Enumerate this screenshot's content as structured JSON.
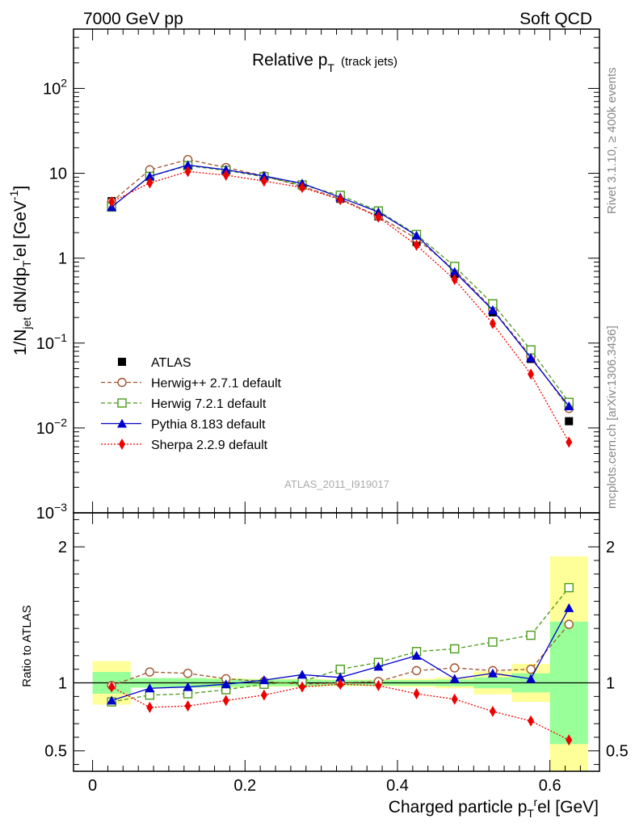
{
  "header": {
    "left": "7000 GeV pp",
    "right": "Soft QCD"
  },
  "side_labels": {
    "rivet": "Rivet 3.1.10, ≥ 400k events",
    "mcplots": "mcplots.cern.ch [arXiv:1306.3436]"
  },
  "chart_data": [
    {
      "type": "line",
      "title": "Relative p",
      "title_sub": "T",
      "title_extra": "(track jets)",
      "analysis_id": "ATLAS_2011_I919017",
      "ylabel": "1/N_jet dN/dp_T^rel [GeV^-1]",
      "yscale": "log",
      "ylim": [
        0.001,
        500
      ],
      "yticks": [
        {
          "base": "10",
          "exp": "2",
          "value": 100
        },
        {
          "base": "10",
          "exp": "",
          "value": 10
        },
        {
          "base": "1",
          "exp": "",
          "value": 1
        },
        {
          "base": "10",
          "exp": "−1",
          "value": 0.1
        },
        {
          "base": "10",
          "exp": "−2",
          "value": 0.01
        },
        {
          "base": "10",
          "exp": "−3",
          "value": 0.001
        }
      ],
      "xlim": [
        -0.025,
        0.665
      ],
      "x": [
        0.025,
        0.075,
        0.125,
        0.175,
        0.225,
        0.275,
        0.325,
        0.375,
        0.425,
        0.475,
        0.525,
        0.575,
        0.625
      ],
      "legend": [
        {
          "name": "ATLAS",
          "color": "#000000",
          "marker": "square-filled",
          "dash": ""
        },
        {
          "name": "Herwig++ 2.7.1 default",
          "color": "#a0522d",
          "marker": "circle-open",
          "dash": "5,3"
        },
        {
          "name": "Herwig 7.2.1 default",
          "color": "#4a9a1a",
          "marker": "square-open",
          "dash": "5,3"
        },
        {
          "name": "Pythia 8.183 default",
          "color": "#0000cc",
          "marker": "triangle-filled",
          "dash": ""
        },
        {
          "name": "Sherpa 2.2.9 default",
          "color": "#ee0000",
          "marker": "diamond-filled",
          "dash": "2,2"
        }
      ],
      "series": [
        {
          "name": "ATLAS",
          "values": [
            4.7,
            10.2,
            13.3,
            11.3,
            9.2,
            7.2,
            5.0,
            3.1,
            1.55,
            0.65,
            0.23,
            0.065,
            0.012
          ]
        },
        {
          "name": "Herwig++ 2.7.1 default",
          "values": [
            4.6,
            11.0,
            14.5,
            11.7,
            9.3,
            7.0,
            5.0,
            3.1,
            1.7,
            0.73,
            0.25,
            0.07,
            0.017
          ]
        },
        {
          "name": "Herwig 7.2.1 default",
          "values": [
            4.0,
            9.2,
            12.3,
            10.8,
            9.1,
            7.3,
            5.5,
            3.6,
            1.9,
            0.8,
            0.29,
            0.083,
            0.02
          ]
        },
        {
          "name": "Pythia 8.183 default",
          "values": [
            4.0,
            9.2,
            12.5,
            11.0,
            9.3,
            7.6,
            5.2,
            3.5,
            1.85,
            0.69,
            0.245,
            0.067,
            0.018
          ]
        },
        {
          "name": "Sherpa 2.2.9 default",
          "values": [
            4.6,
            7.7,
            10.5,
            9.5,
            8.1,
            6.8,
            4.9,
            3.05,
            1.42,
            0.56,
            0.17,
            0.043,
            0.0068
          ]
        }
      ]
    },
    {
      "type": "line",
      "title": "",
      "ylabel": "Ratio to ATLAS",
      "xlabel": "Charged particle p_T^rel [GeV]",
      "xlabel_main": "Charged particle p",
      "xlabel_sub": "T",
      "xlabel_sup": "r",
      "xlabel_end": "el [GeV]",
      "ylim": [
        0.35,
        2.25
      ],
      "yticks": [
        {
          "label": "0.5",
          "value": 0.5
        },
        {
          "label": "1",
          "value": 1
        },
        {
          "label": "2",
          "value": 2
        }
      ],
      "xlim": [
        -0.025,
        0.665
      ],
      "xticks": [
        {
          "label": "0",
          "value": 0
        },
        {
          "label": "0.2",
          "value": 0.2
        },
        {
          "label": "0.4",
          "value": 0.4
        },
        {
          "label": "0.6",
          "value": 0.6
        }
      ],
      "bins": [
        [
          0.0,
          0.05
        ],
        [
          0.05,
          0.1
        ],
        [
          0.1,
          0.15
        ],
        [
          0.15,
          0.2
        ],
        [
          0.2,
          0.25
        ],
        [
          0.25,
          0.3
        ],
        [
          0.3,
          0.35
        ],
        [
          0.35,
          0.4
        ],
        [
          0.4,
          0.45
        ],
        [
          0.45,
          0.5
        ],
        [
          0.5,
          0.55
        ],
        [
          0.55,
          0.6
        ],
        [
          0.6,
          0.65
        ]
      ],
      "band_stat": [
        0.08,
        0.035,
        0.035,
        0.03,
        0.025,
        0.025,
        0.02,
        0.02,
        0.02,
        0.025,
        0.04,
        0.07,
        0.45
      ],
      "band_total": [
        0.16,
        0.035,
        0.035,
        0.035,
        0.03,
        0.03,
        0.025,
        0.025,
        0.03,
        0.04,
        0.085,
        0.14,
        0.93
      ],
      "x": [
        0.025,
        0.075,
        0.125,
        0.175,
        0.225,
        0.275,
        0.325,
        0.375,
        0.425,
        0.475,
        0.525,
        0.575,
        0.625
      ],
      "series": [
        {
          "name": "Herwig++ 2.7.1 default",
          "values": [
            0.98,
            1.08,
            1.07,
            1.03,
            1.01,
            0.99,
            1.0,
            1.01,
            1.09,
            1.11,
            1.09,
            1.1,
            1.43
          ]
        },
        {
          "name": "Herwig 7.2.1 default",
          "values": [
            0.86,
            0.91,
            0.92,
            0.95,
            0.99,
            1.01,
            1.1,
            1.15,
            1.23,
            1.25,
            1.3,
            1.35,
            1.7
          ]
        },
        {
          "name": "Pythia 8.183 default",
          "values": [
            0.87,
            0.96,
            0.97,
            0.99,
            1.02,
            1.06,
            1.04,
            1.12,
            1.2,
            1.03,
            1.07,
            1.03,
            1.55
          ]
        },
        {
          "name": "Sherpa 2.2.9 default",
          "values": [
            0.97,
            0.82,
            0.83,
            0.87,
            0.91,
            0.97,
            0.99,
            0.98,
            0.92,
            0.88,
            0.79,
            0.72,
            0.58
          ]
        }
      ]
    }
  ]
}
